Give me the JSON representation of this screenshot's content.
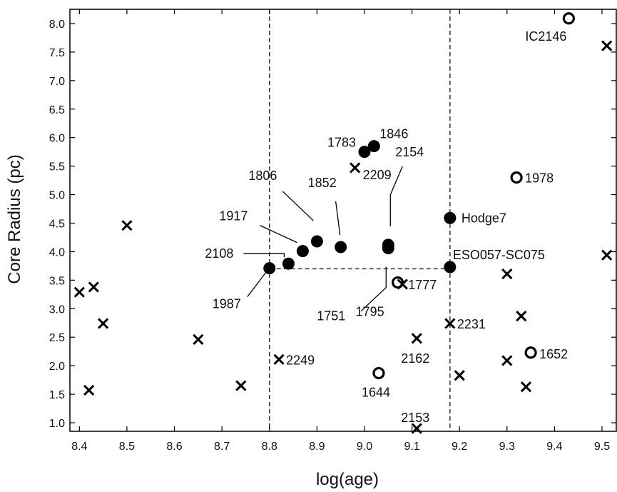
{
  "chart_data": {
    "type": "scatter",
    "xlabel": "log(age)",
    "ylabel": "Core Radius (pc)",
    "xlim": [
      8.38,
      9.53
    ],
    "ylim": [
      0.85,
      8.25
    ],
    "x_ticks": [
      "8.4",
      "8.5",
      "8.6",
      "8.7",
      "8.8",
      "8.9",
      "9.0",
      "9.1",
      "9.2",
      "9.3",
      "9.4",
      "9.5"
    ],
    "y_ticks": [
      "1.0",
      "1.5",
      "2.0",
      "2.5",
      "3.0",
      "3.5",
      "4.0",
      "4.5",
      "5.0",
      "5.5",
      "6.0",
      "6.5",
      "7.0",
      "7.5",
      "8.0"
    ],
    "grid": false,
    "reference_lines": {
      "vertical_x": [
        8.8,
        9.18
      ],
      "horizontal": {
        "y": 3.7,
        "x_from": 8.8,
        "x_to": 9.18
      }
    },
    "series": [
      {
        "marker": "filled-circle",
        "points": [
          {
            "label": "1783",
            "x": 9.0,
            "y": 5.75
          },
          {
            "label": "1846",
            "x": 9.02,
            "y": 5.85
          },
          {
            "label": "1806",
            "x": 8.9,
            "y": 4.18
          },
          {
            "label": "1852",
            "x": 8.95,
            "y": 4.08
          },
          {
            "label": "2154",
            "x": 9.05,
            "y": 4.12
          },
          {
            "label": "1751",
            "x": 9.05,
            "y": 4.06
          },
          {
            "label": "1917",
            "x": 8.87,
            "y": 4.01
          },
          {
            "label": "2108",
            "x": 8.84,
            "y": 3.79
          },
          {
            "label": "1987",
            "x": 8.8,
            "y": 3.71
          },
          {
            "label": "Hodge7",
            "x": 9.18,
            "y": 4.59
          },
          {
            "label": "ESO057-SC075",
            "x": 9.18,
            "y": 3.73
          }
        ]
      },
      {
        "marker": "open-circle",
        "points": [
          {
            "label": "IC2146",
            "x": 9.43,
            "y": 8.09
          },
          {
            "label": "1978",
            "x": 9.32,
            "y": 5.3
          },
          {
            "label": "1795",
            "x": 9.07,
            "y": 3.46
          },
          {
            "label": "1652",
            "x": 9.35,
            "y": 2.23
          },
          {
            "label": "1644",
            "x": 9.03,
            "y": 1.87
          }
        ]
      },
      {
        "marker": "cross",
        "points": [
          {
            "label": "2209",
            "x": 8.98,
            "y": 5.47
          },
          {
            "label": "1777",
            "x": 9.08,
            "y": 3.43
          },
          {
            "label": "2231",
            "x": 9.18,
            "y": 2.74
          },
          {
            "label": "2162",
            "x": 9.11,
            "y": 2.48
          },
          {
            "label": "2249",
            "x": 8.82,
            "y": 2.11
          },
          {
            "label": "2153",
            "x": 9.11,
            "y": 0.9
          },
          {
            "label": "",
            "x": 8.4,
            "y": 3.29
          },
          {
            "label": "",
            "x": 8.43,
            "y": 3.38
          },
          {
            "label": "",
            "x": 8.45,
            "y": 2.74
          },
          {
            "label": "",
            "x": 8.42,
            "y": 1.57
          },
          {
            "label": "",
            "x": 8.5,
            "y": 4.46
          },
          {
            "label": "",
            "x": 8.65,
            "y": 2.46
          },
          {
            "label": "",
            "x": 8.74,
            "y": 1.65
          },
          {
            "label": "",
            "x": 9.2,
            "y": 1.83
          },
          {
            "label": "",
            "x": 9.3,
            "y": 3.61
          },
          {
            "label": "",
            "x": 9.3,
            "y": 2.09
          },
          {
            "label": "",
            "x": 9.33,
            "y": 2.87
          },
          {
            "label": "",
            "x": 9.34,
            "y": 1.63
          },
          {
            "label": "",
            "x": 9.51,
            "y": 7.61
          },
          {
            "label": "",
            "x": 9.51,
            "y": 3.94
          }
        ]
      }
    ]
  }
}
